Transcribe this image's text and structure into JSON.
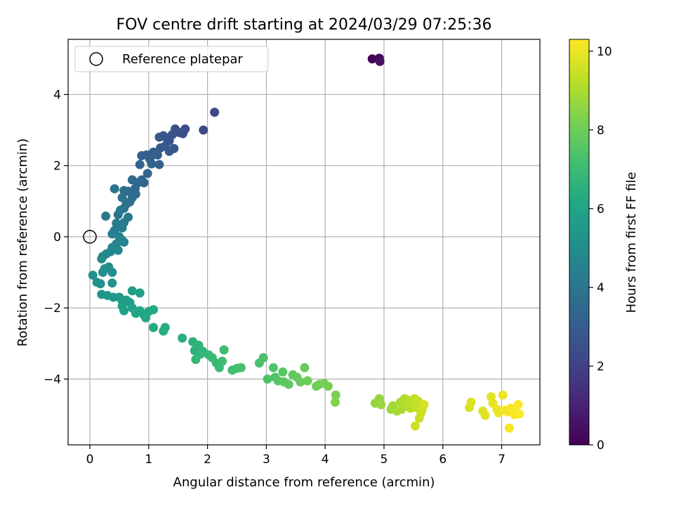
{
  "chart_data": {
    "type": "scatter",
    "title": "FOV centre drift starting at 2024/03/29 07:25:36",
    "xlabel": "Angular distance from reference (arcmin)",
    "ylabel": "Rotation from reference (arcmin)",
    "xlim": [
      -0.37,
      7.65
    ],
    "ylim": [
      -5.85,
      5.55
    ],
    "xticks": [
      0,
      1,
      2,
      3,
      4,
      5,
      6,
      7
    ],
    "yticks": [
      -4,
      -2,
      0,
      2,
      4
    ],
    "grid": true,
    "legend": {
      "position": "top-left",
      "entries": [
        "Reference platepar"
      ]
    },
    "reference_point": {
      "x": 0,
      "y": 0,
      "label": "Reference platepar"
    },
    "colorbar": {
      "label": "Hours from first FF file",
      "colormap": "viridis",
      "range": [
        0,
        10.3
      ],
      "ticks": [
        0,
        2,
        4,
        6,
        8,
        10
      ]
    },
    "points": [
      [
        4.8,
        5.0,
        0.1
      ],
      [
        4.92,
        5.02,
        0.2
      ],
      [
        4.93,
        4.93,
        0.5
      ],
      [
        2.12,
        3.5,
        2.2
      ],
      [
        1.93,
        3.0,
        2.3
      ],
      [
        1.62,
        3.03,
        2.35
      ],
      [
        1.58,
        2.9,
        2.4
      ],
      [
        1.52,
        2.93,
        2.45
      ],
      [
        1.45,
        3.03,
        2.5
      ],
      [
        1.4,
        2.87,
        2.55
      ],
      [
        1.35,
        2.7,
        2.6
      ],
      [
        1.3,
        2.78,
        2.65
      ],
      [
        1.25,
        2.84,
        2.7
      ],
      [
        1.18,
        2.8,
        2.75
      ],
      [
        1.43,
        2.48,
        2.8
      ],
      [
        1.35,
        2.4,
        2.85
      ],
      [
        1.28,
        2.55,
        2.9
      ],
      [
        1.2,
        2.5,
        2.95
      ],
      [
        1.15,
        2.3,
        3.0
      ],
      [
        1.08,
        2.38,
        3.05
      ],
      [
        1.02,
        2.18,
        3.1
      ],
      [
        0.96,
        2.3,
        3.1
      ],
      [
        0.88,
        2.28,
        3.15
      ],
      [
        0.85,
        2.03,
        3.2
      ],
      [
        1.18,
        2.03,
        3.2
      ],
      [
        1.05,
        2.05,
        3.25
      ],
      [
        0.98,
        1.78,
        3.3
      ],
      [
        0.92,
        1.52,
        3.35
      ],
      [
        0.88,
        1.6,
        3.4
      ],
      [
        0.82,
        1.52,
        3.45
      ],
      [
        0.77,
        1.36,
        3.5
      ],
      [
        0.72,
        1.6,
        3.55
      ],
      [
        0.78,
        1.2,
        3.6
      ],
      [
        0.72,
        1.1,
        3.65
      ],
      [
        0.65,
        1.28,
        3.7
      ],
      [
        0.58,
        1.3,
        3.75
      ],
      [
        0.68,
        0.98,
        3.8
      ],
      [
        0.62,
        0.92,
        3.85
      ],
      [
        0.55,
        1.1,
        3.9
      ],
      [
        0.42,
        1.35,
        3.9
      ],
      [
        0.58,
        0.8,
        3.95
      ],
      [
        0.52,
        0.75,
        4.0
      ],
      [
        0.48,
        0.62,
        4.05
      ],
      [
        0.27,
        0.58,
        4.1
      ],
      [
        0.65,
        0.55,
        4.15
      ],
      [
        0.58,
        0.4,
        4.2
      ],
      [
        0.45,
        0.38,
        4.25
      ],
      [
        0.42,
        0.18,
        4.3
      ],
      [
        0.55,
        0.25,
        4.35
      ],
      [
        0.38,
        0.08,
        4.4
      ],
      [
        0.5,
        0.0,
        4.45
      ],
      [
        0.55,
        -0.1,
        4.5
      ],
      [
        0.58,
        -0.15,
        4.55
      ],
      [
        0.45,
        -0.2,
        4.6
      ],
      [
        0.38,
        -0.3,
        4.65
      ],
      [
        0.48,
        -0.38,
        4.7
      ],
      [
        0.35,
        -0.42,
        4.75
      ],
      [
        0.28,
        -0.48,
        4.8
      ],
      [
        0.22,
        -0.55,
        4.85
      ],
      [
        0.2,
        -0.62,
        4.9
      ],
      [
        0.32,
        -0.85,
        4.95
      ],
      [
        0.25,
        -0.9,
        5.0
      ],
      [
        0.22,
        -1.0,
        5.05
      ],
      [
        0.38,
        -1.0,
        5.1
      ],
      [
        0.05,
        -1.08,
        5.15
      ],
      [
        0.12,
        -1.28,
        5.2
      ],
      [
        0.18,
        -1.32,
        5.25
      ],
      [
        0.38,
        -1.3,
        5.3
      ],
      [
        0.2,
        -1.62,
        5.35
      ],
      [
        0.3,
        -1.65,
        5.4
      ],
      [
        0.4,
        -1.7,
        5.45
      ],
      [
        0.5,
        -1.7,
        5.5
      ],
      [
        0.55,
        -1.8,
        5.55
      ],
      [
        0.62,
        -1.78,
        5.6
      ],
      [
        0.68,
        -1.85,
        5.65
      ],
      [
        0.72,
        -1.52,
        5.7
      ],
      [
        0.85,
        -1.58,
        5.75
      ],
      [
        0.55,
        -1.95,
        5.8
      ],
      [
        0.58,
        -2.08,
        5.85
      ],
      [
        0.72,
        -2.0,
        5.9
      ],
      [
        0.78,
        -2.15,
        5.95
      ],
      [
        0.85,
        -2.08,
        6.0
      ],
      [
        0.92,
        -2.2,
        6.05
      ],
      [
        1.0,
        -2.1,
        6.1
      ],
      [
        0.95,
        -2.28,
        6.15
      ],
      [
        1.08,
        -2.05,
        6.2
      ],
      [
        1.08,
        -2.55,
        6.25
      ],
      [
        1.28,
        -2.55,
        6.3
      ],
      [
        1.25,
        -2.65,
        6.35
      ],
      [
        1.57,
        -2.85,
        6.45
      ],
      [
        1.75,
        -2.95,
        6.55
      ],
      [
        1.78,
        -3.2,
        6.6
      ],
      [
        1.85,
        -3.05,
        6.65
      ],
      [
        1.92,
        -3.22,
        6.7
      ],
      [
        1.88,
        -3.3,
        6.75
      ],
      [
        1.8,
        -3.45,
        6.8
      ],
      [
        2.02,
        -3.32,
        6.85
      ],
      [
        2.08,
        -3.4,
        6.9
      ],
      [
        2.15,
        -3.55,
        6.95
      ],
      [
        2.2,
        -3.68,
        7.0
      ],
      [
        2.25,
        -3.5,
        7.05
      ],
      [
        2.28,
        -3.18,
        7.1
      ],
      [
        2.42,
        -3.75,
        7.15
      ],
      [
        2.5,
        -3.7,
        7.2
      ],
      [
        2.57,
        -3.68,
        7.25
      ],
      [
        2.88,
        -3.55,
        7.3
      ],
      [
        2.95,
        -3.4,
        7.35
      ],
      [
        3.02,
        -4.0,
        7.4
      ],
      [
        3.12,
        -3.68,
        7.45
      ],
      [
        3.15,
        -3.95,
        7.5
      ],
      [
        3.2,
        -4.05,
        7.55
      ],
      [
        3.28,
        -3.8,
        7.6
      ],
      [
        3.3,
        -4.08,
        7.65
      ],
      [
        3.38,
        -4.15,
        7.7
      ],
      [
        3.45,
        -3.88,
        7.75
      ],
      [
        3.52,
        -3.95,
        7.8
      ],
      [
        3.58,
        -4.08,
        7.85
      ],
      [
        3.65,
        -3.68,
        7.9
      ],
      [
        3.7,
        -4.05,
        7.95
      ],
      [
        3.85,
        -4.2,
        8.0
      ],
      [
        3.9,
        -4.15,
        8.05
      ],
      [
        3.98,
        -4.12,
        8.1
      ],
      [
        4.05,
        -4.2,
        8.15
      ],
      [
        4.18,
        -4.45,
        8.2
      ],
      [
        4.17,
        -4.65,
        8.3
      ],
      [
        4.85,
        -4.68,
        8.6
      ],
      [
        4.92,
        -4.55,
        8.65
      ],
      [
        4.95,
        -4.72,
        8.7
      ],
      [
        5.12,
        -4.85,
        8.8
      ],
      [
        5.15,
        -4.75,
        8.85
      ],
      [
        5.22,
        -4.9,
        8.9
      ],
      [
        5.28,
        -4.65,
        8.95
      ],
      [
        5.3,
        -4.85,
        9.0
      ],
      [
        5.35,
        -4.55,
        9.05
      ],
      [
        5.38,
        -4.75,
        9.1
      ],
      [
        5.42,
        -4.6,
        9.15
      ],
      [
        5.45,
        -4.82,
        9.2
      ],
      [
        5.5,
        -4.65,
        9.25
      ],
      [
        5.52,
        -4.55,
        9.3
      ],
      [
        5.55,
        -4.8,
        9.35
      ],
      [
        5.58,
        -4.62,
        9.4
      ],
      [
        5.6,
        -5.1,
        9.45
      ],
      [
        5.63,
        -4.95,
        9.5
      ],
      [
        5.65,
        -4.85,
        9.55
      ],
      [
        5.68,
        -4.72,
        9.6
      ],
      [
        5.53,
        -5.32,
        9.55
      ],
      [
        6.45,
        -4.8,
        9.7
      ],
      [
        6.48,
        -4.65,
        9.75
      ],
      [
        6.68,
        -4.9,
        9.8
      ],
      [
        6.72,
        -5.02,
        9.85
      ],
      [
        6.82,
        -4.5,
        9.9
      ],
      [
        6.85,
        -4.68,
        9.95
      ],
      [
        6.92,
        -4.85,
        10.0
      ],
      [
        6.95,
        -4.95,
        10.0
      ],
      [
        7.02,
        -4.45,
        10.05
      ],
      [
        7.05,
        -4.88,
        10.1
      ],
      [
        7.1,
        -4.92,
        10.1
      ],
      [
        7.13,
        -5.38,
        10.15
      ],
      [
        7.15,
        -4.82,
        10.15
      ],
      [
        7.2,
        -4.9,
        10.2
      ],
      [
        7.22,
        -5.0,
        10.2
      ],
      [
        7.28,
        -4.72,
        10.25
      ],
      [
        7.3,
        -4.98,
        10.25
      ]
    ]
  }
}
